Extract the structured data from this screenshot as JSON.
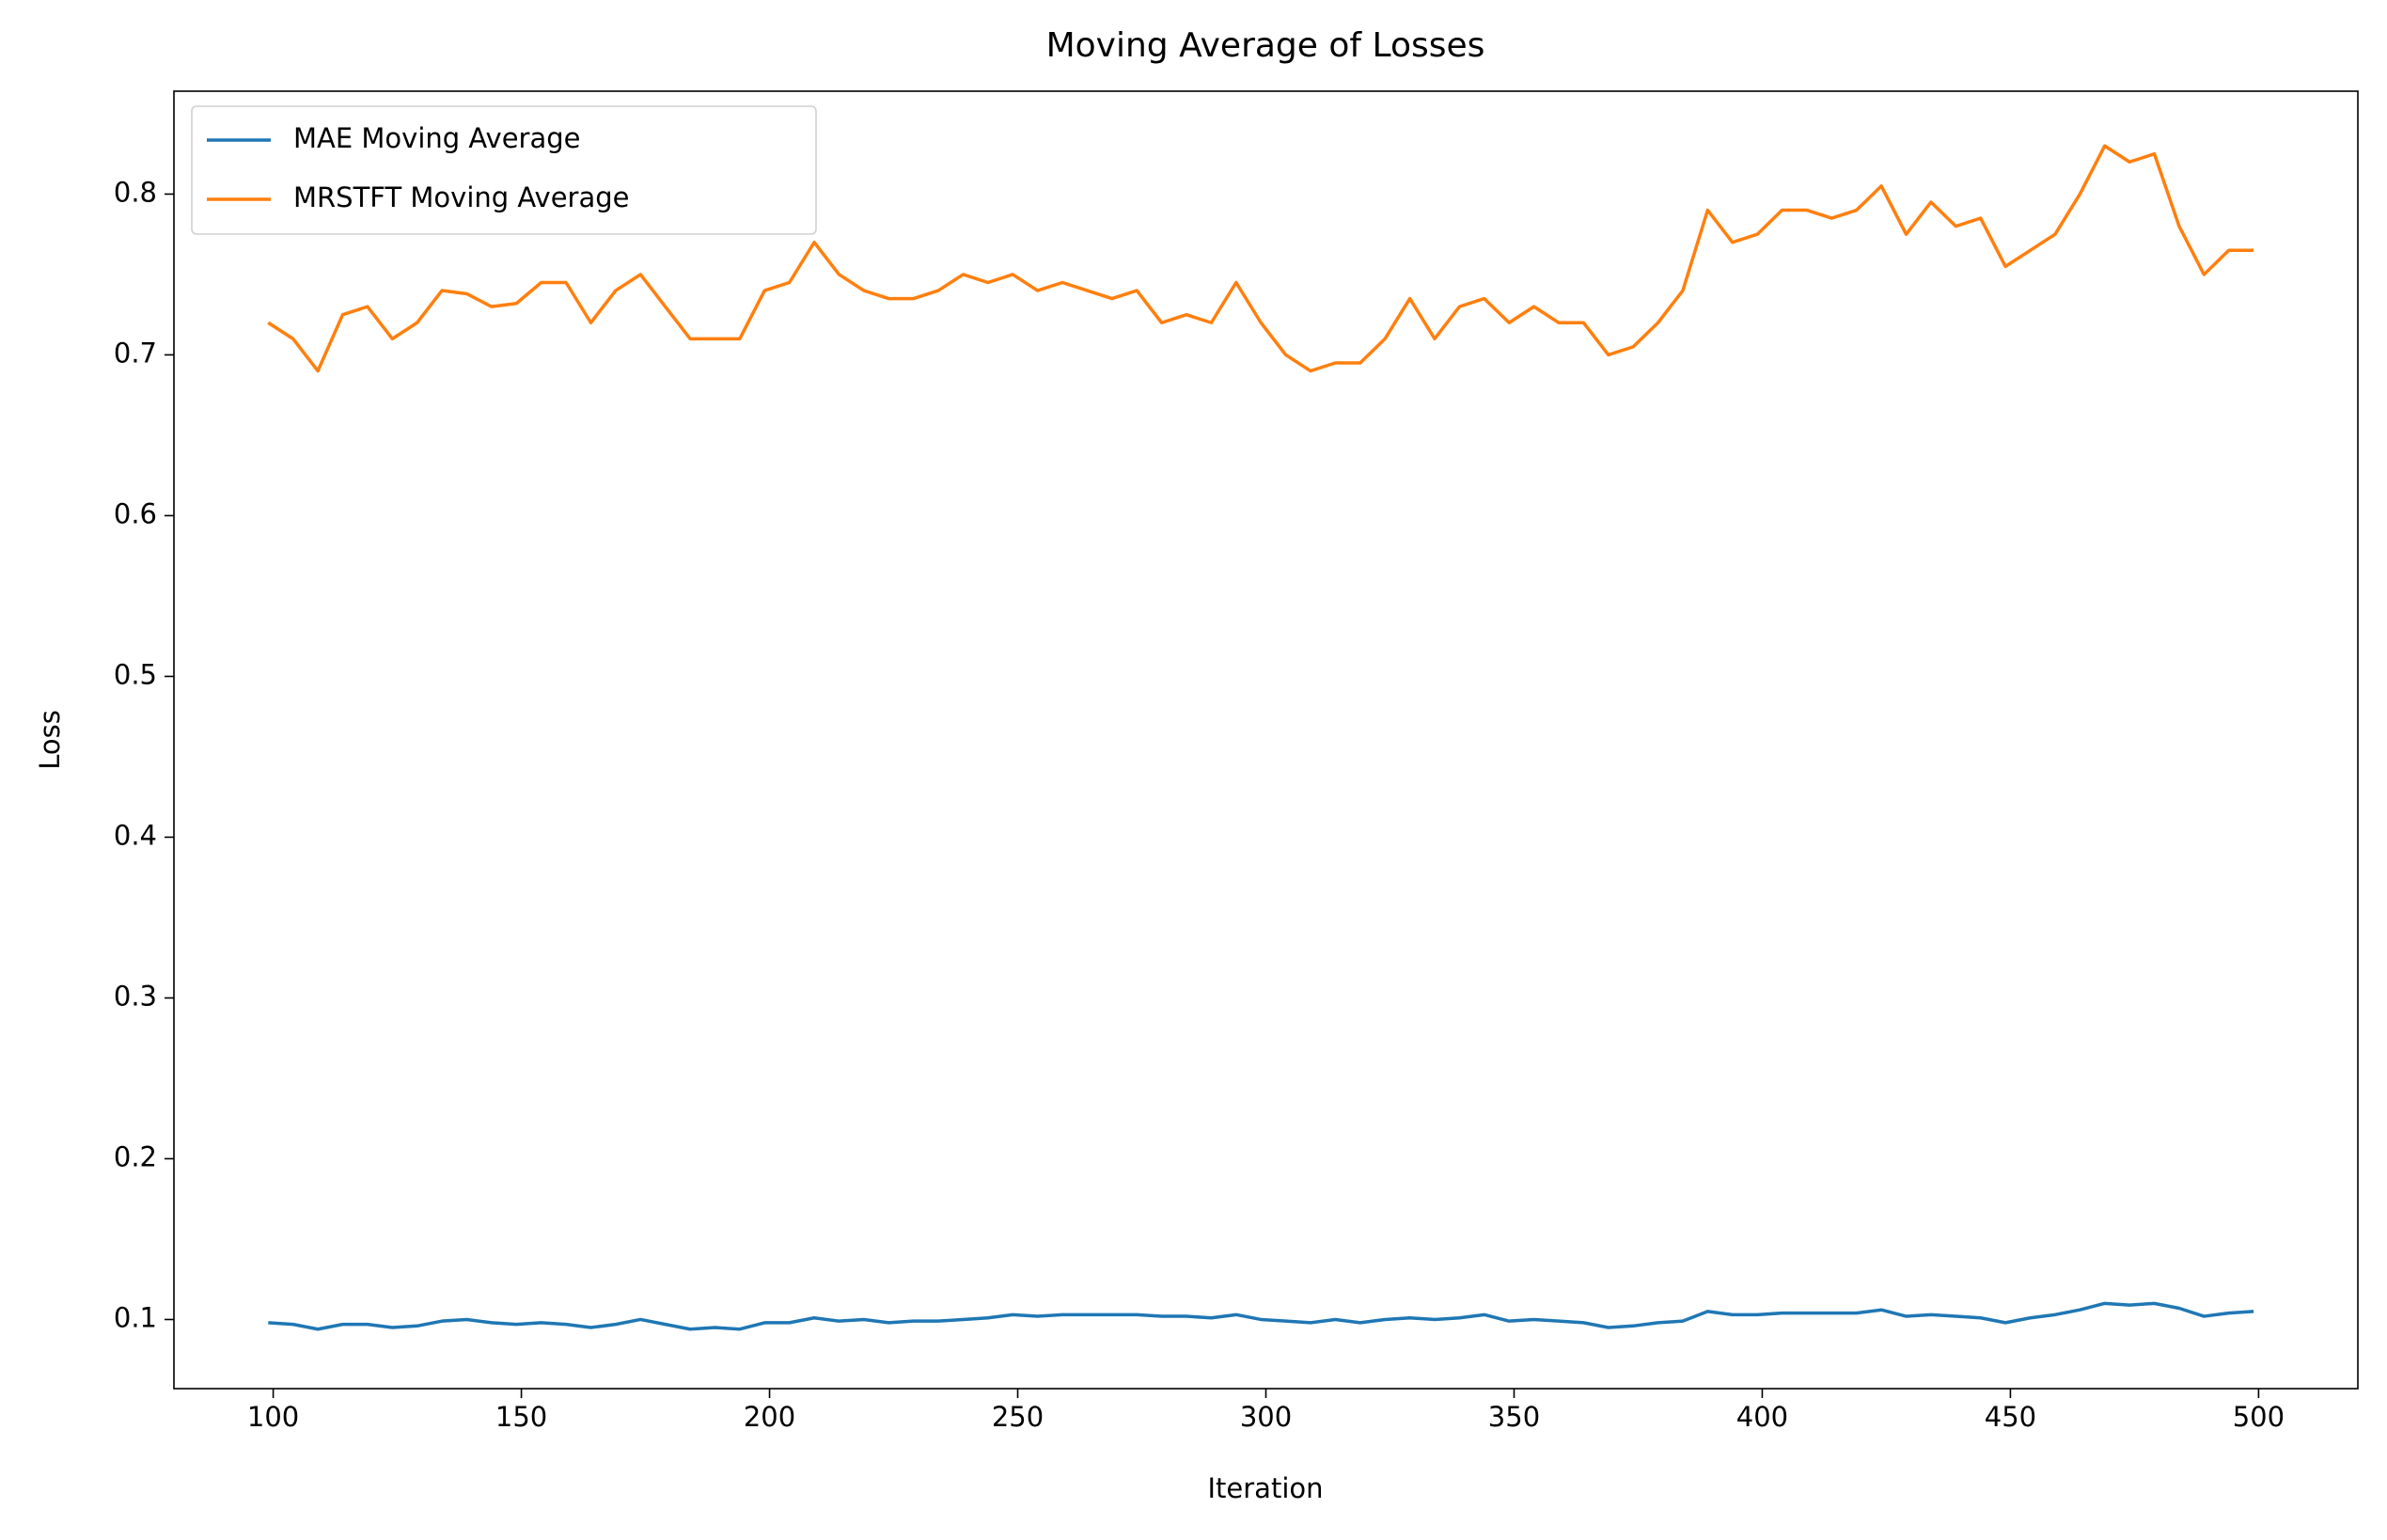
{
  "chart_data": {
    "type": "line",
    "title": "Moving Average of Losses",
    "x_label": "Iteration",
    "y_label": "Loss",
    "x": [
      99,
      104,
      109,
      114,
      119,
      124,
      129,
      134,
      139,
      144,
      149,
      154,
      159,
      164,
      169,
      174,
      179,
      184,
      189,
      194,
      199,
      204,
      209,
      214,
      219,
      224,
      229,
      234,
      239,
      244,
      249,
      254,
      259,
      264,
      269,
      274,
      279,
      284,
      289,
      294,
      299,
      304,
      309,
      314,
      319,
      324,
      329,
      334,
      339,
      344,
      349,
      354,
      359,
      364,
      369,
      374,
      379,
      384,
      389,
      394,
      399,
      404,
      409,
      414,
      419,
      424,
      429,
      434,
      439,
      444,
      449,
      454,
      459,
      464,
      469,
      474,
      479,
      484,
      489,
      494,
      499
    ],
    "series": [
      {
        "name": "MAE Moving Average",
        "color": "#1f77b4",
        "values": [
          0.098,
          0.097,
          0.094,
          0.097,
          0.097,
          0.095,
          0.096,
          0.099,
          0.1,
          0.098,
          0.097,
          0.098,
          0.097,
          0.095,
          0.097,
          0.1,
          0.097,
          0.094,
          0.095,
          0.094,
          0.098,
          0.098,
          0.101,
          0.099,
          0.1,
          0.098,
          0.099,
          0.099,
          0.1,
          0.101,
          0.103,
          0.102,
          0.103,
          0.103,
          0.103,
          0.103,
          0.102,
          0.102,
          0.101,
          0.103,
          0.1,
          0.099,
          0.098,
          0.1,
          0.098,
          0.1,
          0.101,
          0.1,
          0.101,
          0.103,
          0.099,
          0.1,
          0.099,
          0.098,
          0.095,
          0.096,
          0.098,
          0.099,
          0.105,
          0.103,
          0.103,
          0.104,
          0.104,
          0.104,
          0.104,
          0.106,
          0.102,
          0.103,
          0.102,
          0.101,
          0.098,
          0.101,
          0.103,
          0.106,
          0.11,
          0.109,
          0.11,
          0.107,
          0.102,
          0.104,
          0.105
        ]
      },
      {
        "name": "MRSTFT Moving Average",
        "color": "#ff7f0e",
        "values": [
          0.72,
          0.71,
          0.69,
          0.725,
          0.73,
          0.71,
          0.72,
          0.74,
          0.738,
          0.73,
          0.732,
          0.745,
          0.745,
          0.72,
          0.74,
          0.75,
          0.73,
          0.71,
          0.71,
          0.71,
          0.74,
          0.745,
          0.77,
          0.75,
          0.74,
          0.735,
          0.735,
          0.74,
          0.75,
          0.745,
          0.75,
          0.74,
          0.745,
          0.74,
          0.735,
          0.74,
          0.72,
          0.725,
          0.72,
          0.745,
          0.72,
          0.7,
          0.69,
          0.695,
          0.695,
          0.71,
          0.735,
          0.71,
          0.73,
          0.735,
          0.72,
          0.73,
          0.72,
          0.72,
          0.7,
          0.705,
          0.72,
          0.74,
          0.79,
          0.77,
          0.775,
          0.79,
          0.79,
          0.785,
          0.79,
          0.805,
          0.775,
          0.795,
          0.78,
          0.785,
          0.755,
          0.765,
          0.775,
          0.8,
          0.83,
          0.82,
          0.825,
          0.78,
          0.75,
          0.765,
          0.765
        ]
      }
    ],
    "xlim": [
      80,
      520
    ],
    "xticks": [
      100,
      150,
      200,
      250,
      300,
      350,
      400,
      450,
      500
    ],
    "ylim": [
      0.057,
      0.864
    ],
    "yticks": [
      0.1,
      0.2,
      0.3,
      0.4,
      0.5,
      0.6,
      0.7,
      0.8
    ],
    "legend": "upper left"
  }
}
